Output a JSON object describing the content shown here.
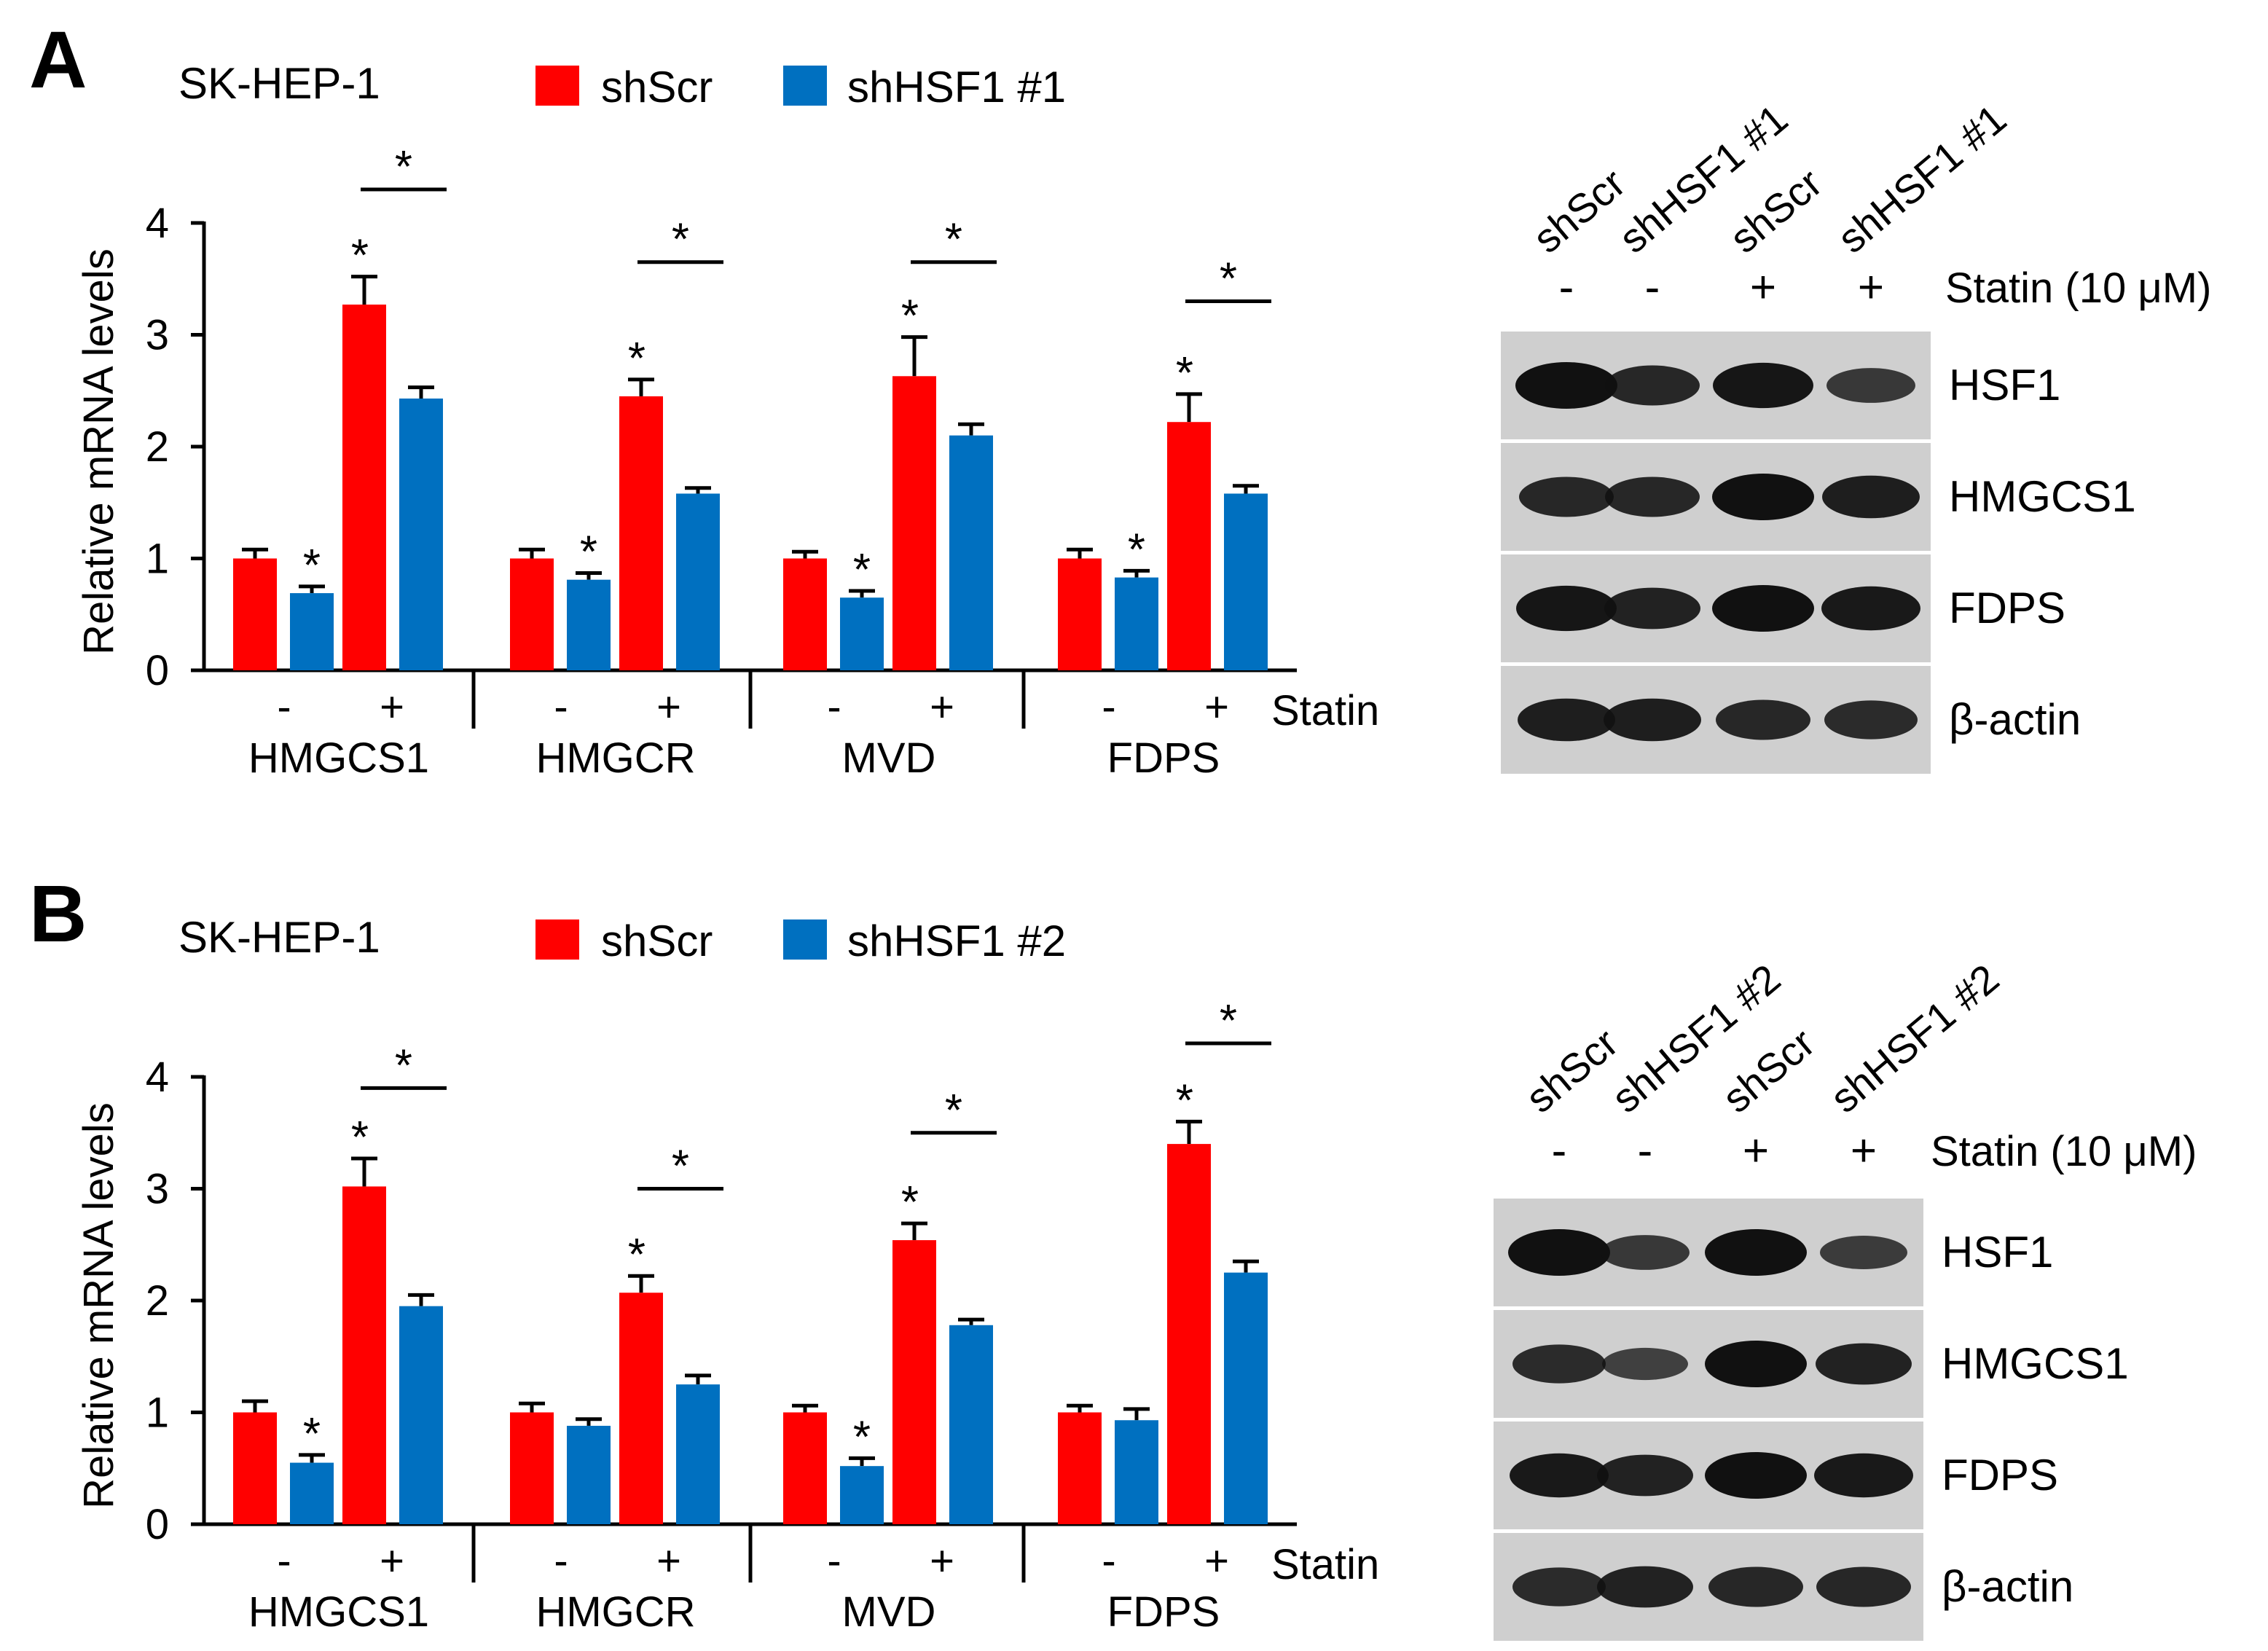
{
  "colors": {
    "shScr": "#ff0000",
    "shHSF1": "#0070c0",
    "axis": "#000000",
    "band": "#111111"
  },
  "chart_data": [
    {
      "panel_label": "A",
      "type": "bar",
      "cell_line": "SK-HEP-1",
      "ylabel": "Relative mRNA levels",
      "ylim": [
        0,
        4
      ],
      "yticks": [
        "0",
        "1",
        "2",
        "3",
        "4"
      ],
      "statin_label": "Statin",
      "treatment_marks": [
        "-",
        "+"
      ],
      "categories": [
        "HMGCS1",
        "HMGCR",
        "MVD",
        "FDPS"
      ],
      "series": [
        {
          "name": "shScr",
          "statin_minus": [
            1.0,
            1.0,
            1.0,
            1.0
          ],
          "statin_plus": [
            3.27,
            2.45,
            2.63,
            2.22
          ],
          "err_minus": [
            0.08,
            0.08,
            0.06,
            0.08
          ],
          "err_plus": [
            0.25,
            0.15,
            0.35,
            0.25
          ]
        },
        {
          "name": "shHSF1 #1",
          "statin_minus": [
            0.69,
            0.81,
            0.65,
            0.83
          ],
          "statin_plus": [
            2.43,
            1.58,
            2.1,
            1.58
          ],
          "err_minus": [
            0.06,
            0.06,
            0.06,
            0.06
          ],
          "err_plus": [
            0.1,
            0.05,
            0.1,
            0.07
          ]
        }
      ],
      "significance_star": "*",
      "stars": {
        "minus_blue": [
          true,
          true,
          true,
          true
        ],
        "plus_red": [
          true,
          true,
          true,
          true
        ],
        "plus_bracket": [
          true,
          true,
          true,
          true
        ],
        "minus_bracket_y": [],
        "bracket_y": [
          4.3,
          3.65,
          3.65,
          3.3
        ]
      }
    },
    {
      "panel_label": "B",
      "type": "bar",
      "cell_line": "SK-HEP-1",
      "ylabel": "Relative mRNA levels",
      "ylim": [
        0,
        4
      ],
      "yticks": [
        "0",
        "1",
        "2",
        "3",
        "4"
      ],
      "statin_label": "Statin",
      "treatment_marks": [
        "-",
        "+"
      ],
      "categories": [
        "HMGCS1",
        "HMGCR",
        "MVD",
        "FDPS"
      ],
      "series": [
        {
          "name": "shScr",
          "statin_minus": [
            1.0,
            1.0,
            1.0,
            1.0
          ],
          "statin_plus": [
            3.02,
            2.07,
            2.54,
            3.4
          ],
          "err_minus": [
            0.1,
            0.08,
            0.06,
            0.06
          ],
          "err_plus": [
            0.25,
            0.15,
            0.15,
            0.2
          ]
        },
        {
          "name": "shHSF1 #2",
          "statin_minus": [
            0.55,
            0.88,
            0.52,
            0.93
          ],
          "statin_plus": [
            1.95,
            1.25,
            1.78,
            2.25
          ],
          "err_minus": [
            0.07,
            0.06,
            0.07,
            0.1
          ],
          "err_plus": [
            0.1,
            0.08,
            0.05,
            0.1
          ]
        }
      ],
      "significance_star": "*",
      "stars": {
        "minus_blue": [
          true,
          false,
          true,
          false
        ],
        "plus_red": [
          true,
          true,
          true,
          true
        ],
        "plus_bracket": [
          true,
          true,
          true,
          true
        ],
        "bracket_y": [
          3.9,
          3.0,
          3.5,
          4.3
        ]
      }
    }
  ],
  "blots": [
    {
      "lanes": [
        "shScr",
        "shHSF1 #1",
        "shScr",
        "shHSF1 #1"
      ],
      "statin": [
        "-",
        "-",
        "+",
        "+"
      ],
      "statin_label": "Statin (10 μM)",
      "rows": [
        {
          "name": "HSF1",
          "intensity": [
            1.0,
            0.75,
            0.95,
            0.55
          ]
        },
        {
          "name": "HMGCS1",
          "intensity": [
            0.75,
            0.75,
            1.0,
            0.85
          ]
        },
        {
          "name": "FDPS",
          "intensity": [
            0.95,
            0.8,
            1.0,
            0.9
          ]
        },
        {
          "name": "β-actin",
          "intensity": [
            0.85,
            0.85,
            0.75,
            0.7
          ]
        }
      ]
    },
    {
      "lanes": [
        "shScr",
        "shHSF1 #2",
        "shScr",
        "shHSF1 #2"
      ],
      "statin": [
        "-",
        "-",
        "+",
        "+"
      ],
      "statin_label": "Statin (10 μM)",
      "rows": [
        {
          "name": "HSF1",
          "intensity": [
            1.0,
            0.55,
            1.0,
            0.5
          ]
        },
        {
          "name": "HMGCS1",
          "intensity": [
            0.7,
            0.45,
            1.0,
            0.8
          ]
        },
        {
          "name": "FDPS",
          "intensity": [
            0.9,
            0.8,
            1.0,
            0.9
          ]
        },
        {
          "name": "β-actin",
          "intensity": [
            0.7,
            0.8,
            0.75,
            0.75
          ]
        }
      ]
    }
  ]
}
